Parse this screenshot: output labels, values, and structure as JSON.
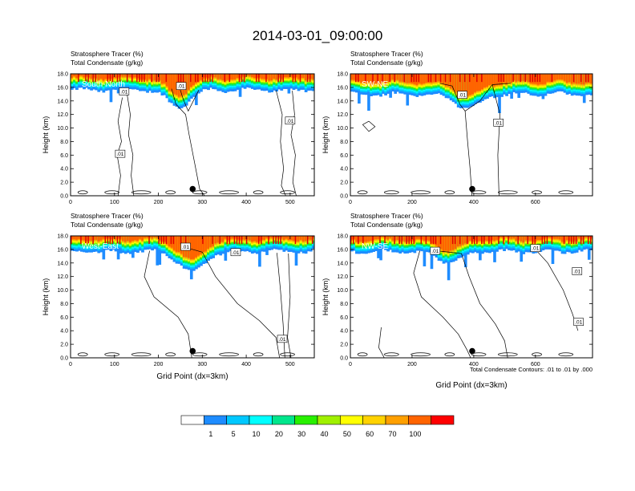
{
  "figure": {
    "title": "2014-03-01_09:00:00",
    "footnote": "Total Condensate Contours: .01 to .01 by .000",
    "xlabel": "Grid Point (dx=3km)",
    "ylabel": "Height (km)"
  },
  "colorbar": {
    "labels": [
      "1",
      "5",
      "10",
      "20",
      "30",
      "40",
      "50",
      "60",
      "70",
      "100"
    ],
    "colors": [
      "#ffffff",
      "#1e8cff",
      "#00c8ff",
      "#00ffff",
      "#00e68c",
      "#28f000",
      "#a0f000",
      "#ffff00",
      "#ffd200",
      "#ffa000",
      "#ff6400",
      "#ff0000"
    ]
  },
  "chart_data": [
    {
      "type": "contour",
      "label": "South-North",
      "title_line1": "Stratosphere Tracer   (%)",
      "title_line2": "Total Condensate   (g/kg)",
      "xlim": [
        0,
        555
      ],
      "xticks": [
        0,
        100,
        200,
        300,
        400,
        500
      ],
      "ylim": [
        0,
        18
      ],
      "yticks": [
        "0.0",
        "2.0",
        "4.0",
        "6.0",
        "8.0",
        "10.0",
        "12.0",
        "14.0",
        "16.0",
        "18.0"
      ],
      "xlabel": "",
      "marker": {
        "x": 278,
        "y": 1.0
      },
      "contour_labels": [
        {
          "text": ".01",
          "x": 252,
          "y": 16.2
        },
        {
          "text": ".01",
          "x": 122,
          "y": 15.4
        },
        {
          "text": ".01",
          "x": 500,
          "y": 11.1
        },
        {
          "text": ".01",
          "x": 113,
          "y": 6.2
        }
      ]
    },
    {
      "type": "contour",
      "label": "SW-NE",
      "title_line1": "Stratosphere Tracer   (%)",
      "title_line2": "Total Condensate   (g/kg)",
      "xlim": [
        0,
        785
      ],
      "xticks": [
        0,
        200,
        400,
        600
      ],
      "ylim": [
        0,
        18
      ],
      "yticks": [
        "0.0",
        "2.0",
        "4.0",
        "6.0",
        "8.0",
        "10.0",
        "12.0",
        "14.0",
        "16.0",
        "18.0"
      ],
      "xlabel": "",
      "marker": {
        "x": 395,
        "y": 1.0
      },
      "contour_labels": [
        {
          "text": ".01",
          "x": 363,
          "y": 14.9
        },
        {
          "text": ".01",
          "x": 480,
          "y": 10.8
        }
      ]
    },
    {
      "type": "contour",
      "label": "West-East",
      "title_line1": "Stratosphere Tracer   (%)",
      "title_line2": "Total Condensate   (g/kg)",
      "xlim": [
        0,
        555
      ],
      "xticks": [
        0,
        100,
        200,
        300,
        400,
        500
      ],
      "ylim": [
        0,
        18
      ],
      "yticks": [
        "0.0",
        "2.0",
        "4.0",
        "6.0",
        "8.0",
        "10.0",
        "12.0",
        "14.0",
        "16.0",
        "18.0"
      ],
      "xlabel": "Grid Point (dx=3km)",
      "marker": {
        "x": 278,
        "y": 1.0
      },
      "contour_labels": [
        {
          "text": ".01",
          "x": 262,
          "y": 16.4
        },
        {
          "text": ".01",
          "x": 376,
          "y": 15.6
        },
        {
          "text": ".01",
          "x": 482,
          "y": 2.8
        }
      ]
    },
    {
      "type": "contour",
      "label": "NW-SE",
      "title_line1": "Stratosphere Tracer   (%)",
      "title_line2": "Total Condensate   (g/kg)",
      "xlim": [
        0,
        785
      ],
      "xticks": [
        0,
        200,
        400,
        600
      ],
      "ylim": [
        0,
        18
      ],
      "yticks": [
        "0.0",
        "2.0",
        "4.0",
        "6.0",
        "8.0",
        "10.0",
        "12.0",
        "14.0",
        "16.0",
        "18.0"
      ],
      "xlabel": "Grid Point (dx=3km)",
      "marker": {
        "x": 395,
        "y": 1.0
      },
      "contour_labels": [
        {
          "text": ".01",
          "x": 275,
          "y": 15.8
        },
        {
          "text": ".01",
          "x": 600,
          "y": 16.2
        },
        {
          "text": ".01",
          "x": 735,
          "y": 12.8
        },
        {
          "text": ".01",
          "x": 740,
          "y": 5.3
        }
      ]
    }
  ]
}
